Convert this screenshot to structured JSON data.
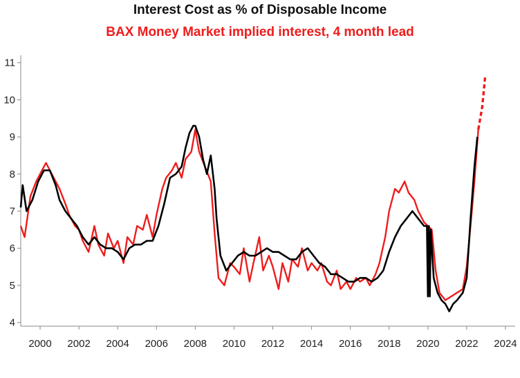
{
  "chart_data": {
    "type": "line",
    "title": "Interest Cost as % of Disposable Income",
    "subtitle": "BAX Money Market implied interest, 4 month lead",
    "xlabel": "",
    "ylabel": "",
    "xlim": [
      1999.0,
      2024.5
    ],
    "ylim": [
      3.9,
      11.2
    ],
    "x_ticks": [
      "2000",
      "2002",
      "2004",
      "2006",
      "2008",
      "2010",
      "2012",
      "2014",
      "2016",
      "2018",
      "2020",
      "2022",
      "2024"
    ],
    "y_ticks": [
      "4",
      "5",
      "6",
      "7",
      "8",
      "9",
      "10",
      "11"
    ],
    "grid": false,
    "legend": "none",
    "series": [
      {
        "color": "#ee1c1c",
        "dashed_from_x": 2022.6,
        "x": [
          1999.0,
          1999.2,
          1999.5,
          1999.8,
          2000.0,
          2000.3,
          2000.5,
          2000.8,
          2001.0,
          2001.3,
          2001.5,
          2001.8,
          2002.0,
          2002.2,
          2002.5,
          2002.8,
          2003.0,
          2003.3,
          2003.5,
          2003.8,
          2004.0,
          2004.3,
          2004.5,
          2004.8,
          2005.0,
          2005.3,
          2005.5,
          2005.8,
          2006.0,
          2006.3,
          2006.5,
          2006.8,
          2007.0,
          2007.3,
          2007.5,
          2007.8,
          2008.0,
          2008.2,
          2008.5,
          2008.8,
          2009.0,
          2009.2,
          2009.5,
          2009.8,
          2010.0,
          2010.3,
          2010.5,
          2010.8,
          2011.0,
          2011.3,
          2011.5,
          2011.8,
          2012.0,
          2012.3,
          2012.5,
          2012.8,
          2013.0,
          2013.3,
          2013.5,
          2013.8,
          2014.0,
          2014.3,
          2014.5,
          2014.8,
          2015.0,
          2015.3,
          2015.5,
          2015.8,
          2016.0,
          2016.3,
          2016.5,
          2016.8,
          2017.0,
          2017.3,
          2017.5,
          2017.8,
          2018.0,
          2018.3,
          2018.5,
          2018.8,
          2019.0,
          2019.3,
          2019.5,
          2019.8,
          2020.0,
          2020.2,
          2020.4,
          2020.6,
          2020.9,
          2021.2,
          2021.5,
          2021.8,
          2022.0,
          2022.2,
          2022.4,
          2022.6,
          2022.8,
          2022.95
        ],
        "values": [
          6.6,
          6.3,
          7.4,
          7.8,
          8.0,
          8.3,
          8.1,
          7.8,
          7.6,
          7.2,
          6.9,
          6.6,
          6.5,
          6.2,
          5.9,
          6.6,
          6.1,
          5.8,
          6.4,
          6.0,
          6.2,
          5.6,
          6.3,
          6.1,
          6.6,
          6.5,
          6.9,
          6.3,
          6.9,
          7.6,
          7.9,
          8.1,
          8.3,
          7.9,
          8.4,
          8.6,
          9.2,
          8.6,
          8.2,
          7.8,
          6.4,
          5.2,
          5.0,
          5.6,
          5.5,
          5.3,
          6.0,
          5.1,
          5.6,
          6.3,
          5.4,
          5.8,
          5.5,
          4.9,
          5.6,
          5.1,
          5.7,
          5.5,
          6.0,
          5.4,
          5.6,
          5.4,
          5.6,
          5.1,
          5.0,
          5.4,
          4.9,
          5.1,
          4.9,
          5.2,
          5.1,
          5.2,
          5.0,
          5.3,
          5.6,
          6.3,
          7.0,
          7.6,
          7.5,
          7.8,
          7.5,
          7.3,
          7.0,
          6.7,
          6.6,
          6.5,
          5.4,
          4.8,
          4.6,
          4.7,
          4.8,
          4.9,
          5.5,
          6.6,
          7.8,
          9.2,
          9.8,
          10.6
        ]
      },
      {
        "color": "#000000",
        "x": [
          1999.0,
          1999.1,
          1999.3,
          1999.6,
          1999.9,
          2000.2,
          2000.5,
          2000.8,
          2001.0,
          2001.3,
          2001.6,
          2001.9,
          2002.2,
          2002.5,
          2002.8,
          2003.1,
          2003.4,
          2003.7,
          2004.0,
          2004.3,
          2004.6,
          2004.9,
          2005.2,
          2005.5,
          2005.8,
          2006.1,
          2006.4,
          2006.7,
          2007.0,
          2007.3,
          2007.5,
          2007.7,
          2007.9,
          2008.0,
          2008.2,
          2008.4,
          2008.6,
          2008.8,
          2009.0,
          2009.1,
          2009.3,
          2009.6,
          2009.9,
          2010.2,
          2010.5,
          2010.8,
          2011.1,
          2011.4,
          2011.7,
          2012.0,
          2012.3,
          2012.6,
          2012.9,
          2013.2,
          2013.5,
          2013.8,
          2014.1,
          2014.4,
          2014.7,
          2015.0,
          2015.3,
          2015.6,
          2015.9,
          2016.2,
          2016.5,
          2016.8,
          2017.1,
          2017.4,
          2017.7,
          2018.0,
          2018.3,
          2018.6,
          2018.9,
          2019.2,
          2019.5,
          2019.8,
          2019.95,
          2020.0,
          2020.05,
          2020.1,
          2020.15,
          2020.3,
          2020.5,
          2020.7,
          2020.9,
          2021.1,
          2021.3,
          2021.5,
          2021.8,
          2022.0,
          2022.2,
          2022.4,
          2022.55
        ],
        "values": [
          7.1,
          7.7,
          7.0,
          7.3,
          7.8,
          8.1,
          8.1,
          7.7,
          7.3,
          7.0,
          6.8,
          6.6,
          6.3,
          6.1,
          6.3,
          6.1,
          6.0,
          6.0,
          5.9,
          5.7,
          6.0,
          6.1,
          6.1,
          6.2,
          6.2,
          6.6,
          7.2,
          7.9,
          8.0,
          8.2,
          8.7,
          9.1,
          9.3,
          9.3,
          9.0,
          8.4,
          8.0,
          8.5,
          7.6,
          6.8,
          5.8,
          5.4,
          5.6,
          5.8,
          5.9,
          5.8,
          5.8,
          5.9,
          6.0,
          5.9,
          5.9,
          5.8,
          5.7,
          5.7,
          5.9,
          6.0,
          5.8,
          5.6,
          5.5,
          5.3,
          5.3,
          5.2,
          5.1,
          5.1,
          5.2,
          5.2,
          5.1,
          5.2,
          5.4,
          5.9,
          6.3,
          6.6,
          6.8,
          7.0,
          6.8,
          6.6,
          6.6,
          4.7,
          6.6,
          4.7,
          6.5,
          5.2,
          4.8,
          4.6,
          4.5,
          4.3,
          4.5,
          4.6,
          4.8,
          5.2,
          6.8,
          8.2,
          9.0
        ]
      }
    ]
  }
}
